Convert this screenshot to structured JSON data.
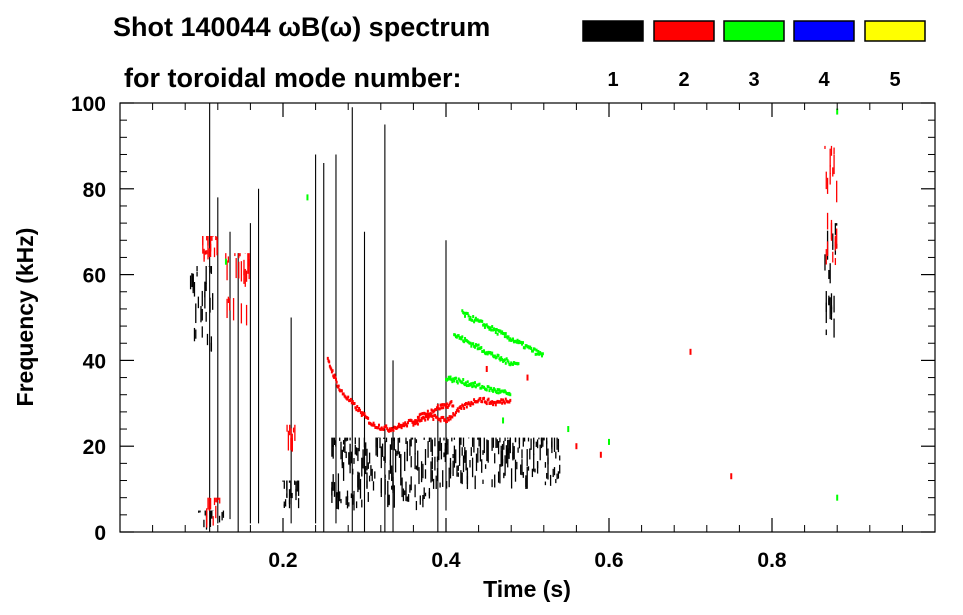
{
  "chart_data": {
    "type": "scatter",
    "title_line1": "Shot 140044 ωB(ω) spectrum",
    "title_line2": "for toroidal mode number:",
    "xlabel": "Time (s)",
    "ylabel": "Frequency (kHz)",
    "xlim": [
      0.0,
      1.0
    ],
    "ylim": [
      0,
      100
    ],
    "x_ticks": [
      0.2,
      0.4,
      0.6,
      0.8
    ],
    "x_tick_labels": [
      "0.2",
      "0.4",
      "0.6",
      "0.8"
    ],
    "y_ticks": [
      0,
      20,
      40,
      60,
      80,
      100
    ],
    "y_tick_labels": [
      "0",
      "20",
      "40",
      "60",
      "80",
      "100"
    ],
    "legend": [
      {
        "label": "1",
        "color": "#000000"
      },
      {
        "label": "2",
        "color": "#ff0000"
      },
      {
        "label": "3",
        "color": "#00ff00"
      },
      {
        "label": "4",
        "color": "#0000ff"
      },
      {
        "label": "5",
        "color": "#ffff00"
      }
    ],
    "legend_placement": "top-right",
    "grid": false,
    "series": [
      {
        "mode": 1,
        "color": "#000000",
        "regions": [
          {
            "t": [
              0.085,
              0.115
            ],
            "f": [
              42,
              62
            ],
            "density": 0.9
          },
          {
            "t": [
              0.095,
              0.13
            ],
            "f": [
              0,
              5
            ],
            "density": 0.4
          },
          {
            "t": [
              0.2,
              0.22
            ],
            "f": [
              5,
              12
            ],
            "density": 0.7
          },
          {
            "t": [
              0.26,
              0.38
            ],
            "f": [
              5,
              22
            ],
            "density": 0.9
          },
          {
            "t": [
              0.38,
              0.54
            ],
            "f": [
              10,
              22
            ],
            "density": 0.85
          },
          {
            "t": [
              0.865,
              0.88
            ],
            "f": [
              45,
              72
            ],
            "density": 0.85
          }
        ],
        "vertical_streaks": [
          {
            "t": 0.11,
            "f": [
              0,
              100
            ]
          },
          {
            "t": 0.12,
            "f": [
              2,
              78
            ]
          },
          {
            "t": 0.135,
            "f": [
              3,
              70
            ]
          },
          {
            "t": 0.145,
            "f": [
              0,
              65
            ]
          },
          {
            "t": 0.16,
            "f": [
              2,
              72
            ]
          },
          {
            "t": 0.17,
            "f": [
              2,
              80
            ]
          },
          {
            "t": 0.21,
            "f": [
              2,
              50
            ]
          },
          {
            "t": 0.24,
            "f": [
              2,
              88
            ]
          },
          {
            "t": 0.25,
            "f": [
              0,
              86
            ]
          },
          {
            "t": 0.265,
            "f": [
              2,
              88
            ]
          },
          {
            "t": 0.285,
            "f": [
              0,
              99
            ]
          },
          {
            "t": 0.3,
            "f": [
              0,
              70
            ]
          },
          {
            "t": 0.325,
            "f": [
              0,
              95
            ]
          },
          {
            "t": 0.335,
            "f": [
              0,
              40
            ]
          },
          {
            "t": 0.39,
            "f": [
              0,
              30
            ]
          },
          {
            "t": 0.4,
            "f": [
              5,
              68
            ]
          }
        ]
      },
      {
        "mode": 2,
        "color": "#ff0000",
        "regions": [
          {
            "t": [
              0.1,
              0.12
            ],
            "f": [
              63,
              69
            ],
            "density": 0.8
          },
          {
            "t": [
              0.125,
              0.16
            ],
            "f": [
              48,
              65
            ],
            "density": 0.5
          },
          {
            "t": [
              0.205,
              0.215
            ],
            "f": [
              18,
              25
            ],
            "density": 0.8
          },
          {
            "t": [
              0.1,
              0.125
            ],
            "f": [
              1,
              8
            ],
            "density": 0.3
          },
          {
            "t": [
              0.865,
              0.88
            ],
            "f": [
              62,
              90
            ],
            "density": 0.8
          }
        ],
        "curves": [
          {
            "t": [
              0.255,
              0.27,
              0.29,
              0.31,
              0.33,
              0.35,
              0.37,
              0.39,
              0.41
            ],
            "f": [
              40,
              33,
              29,
              25,
              24,
              25,
              27,
              29,
              30
            ]
          },
          {
            "t": [
              0.36,
              0.38,
              0.4,
              0.42,
              0.44,
              0.46,
              0.48
            ],
            "f": [
              25,
              27,
              26,
              29,
              31,
              30,
              31
            ]
          }
        ],
        "sparse_points": [
          {
            "t": 0.45,
            "f": 38
          },
          {
            "t": 0.5,
            "f": 36
          },
          {
            "t": 0.56,
            "f": 20
          },
          {
            "t": 0.59,
            "f": 18
          },
          {
            "t": 0.75,
            "f": 13
          },
          {
            "t": 0.7,
            "f": 42
          }
        ]
      },
      {
        "mode": 3,
        "color": "#00ff00",
        "curves": [
          {
            "t": [
              0.41,
              0.43,
              0.45,
              0.47,
              0.49
            ],
            "f": [
              46,
              44,
              42,
              40,
              39
            ]
          },
          {
            "t": [
              0.4,
              0.42,
              0.44,
              0.46,
              0.48
            ],
            "f": [
              36,
              35,
              34,
              33,
              32
            ]
          },
          {
            "t": [
              0.42,
              0.44,
              0.46,
              0.48,
              0.5,
              0.52
            ],
            "f": [
              51,
              49,
              47,
              45,
              43,
              41
            ]
          }
        ],
        "sparse_points": [
          {
            "t": 0.13,
            "f": 63
          },
          {
            "t": 0.23,
            "f": 78
          },
          {
            "t": 0.47,
            "f": 26
          },
          {
            "t": 0.55,
            "f": 24
          },
          {
            "t": 0.6,
            "f": 21
          },
          {
            "t": 0.88,
            "f": 98
          },
          {
            "t": 0.88,
            "f": 8
          }
        ]
      },
      {
        "mode": 4,
        "color": "#0000ff",
        "regions": []
      },
      {
        "mode": 5,
        "color": "#ffff00",
        "regions": []
      }
    ]
  }
}
